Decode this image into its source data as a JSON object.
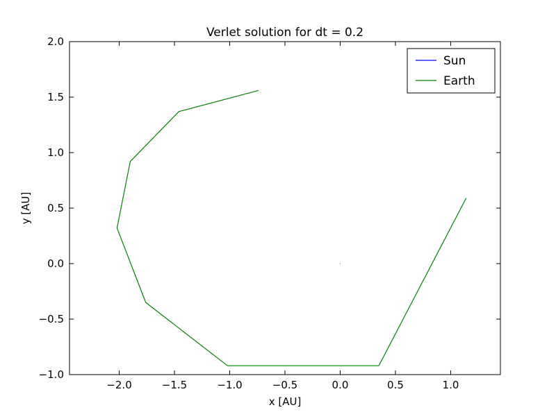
{
  "chart_data": {
    "type": "line",
    "title": "Verlet solution for dt = 0.2",
    "xlabel": "x [AU]",
    "ylabel": "y [AU]",
    "xlim": [
      -2.45,
      1.45
    ],
    "ylim": [
      -1.0,
      2.0
    ],
    "xticks": [
      -2.0,
      -1.5,
      -1.0,
      -0.5,
      0.0,
      0.5,
      1.0
    ],
    "xtick_labels": [
      "−2.0",
      "−1.5",
      "−1.0",
      "−0.5",
      "0.0",
      "0.5",
      "1.0"
    ],
    "yticks": [
      -1.0,
      -0.5,
      0.0,
      0.5,
      1.0,
      1.5,
      2.0
    ],
    "ytick_labels": [
      "−1.0",
      "−0.5",
      "0.0",
      "0.5",
      "1.0",
      "1.5",
      "2.0"
    ],
    "grid": false,
    "legend_position": "top-right",
    "series": [
      {
        "name": "Sun",
        "color": "#0000ff",
        "x": [
          0.0,
          0.003
        ],
        "y": [
          0.0,
          0.0
        ]
      },
      {
        "name": "Earth",
        "color": "#008000",
        "x": [
          1.14,
          0.35,
          -1.02,
          -1.76,
          -2.02,
          -1.9,
          -1.46,
          -0.74
        ],
        "y": [
          0.59,
          -0.92,
          -0.92,
          -0.35,
          0.32,
          0.92,
          1.37,
          1.56
        ]
      }
    ]
  }
}
